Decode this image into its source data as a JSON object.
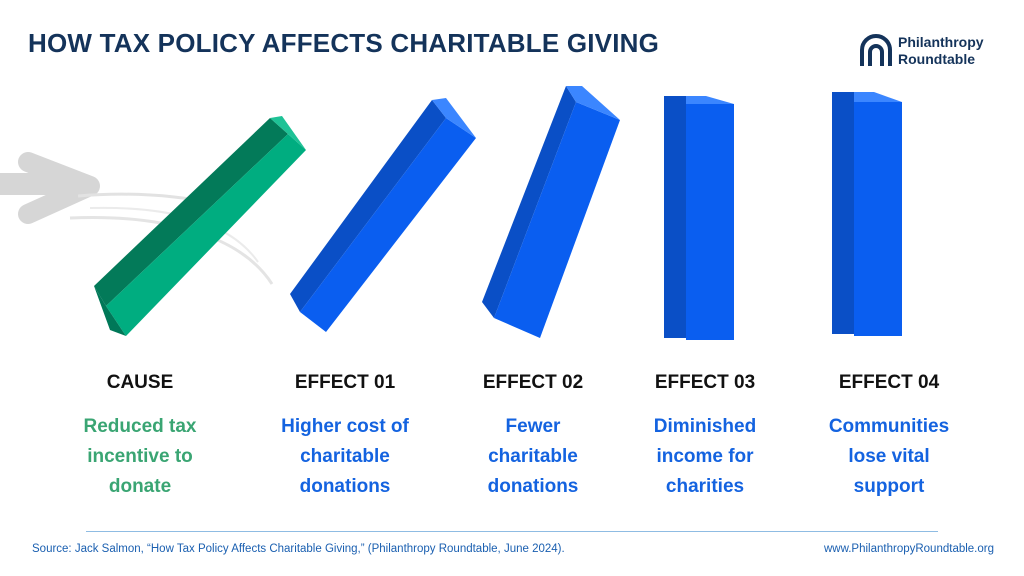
{
  "header": {
    "title": "HOW TAX POLICY AFFECTS CHARITABLE GIVING",
    "logo_line1": "Philanthropy",
    "logo_line2": "Roundtable"
  },
  "colors": {
    "cause_green": "#00ad80",
    "effect_blue": "#0a5ef0",
    "title_navy": "#14335a"
  },
  "stages": [
    {
      "heading": "CAUSE",
      "lines": [
        "Reduced tax",
        "incentive to",
        "donate"
      ]
    },
    {
      "heading": "EFFECT 01",
      "lines": [
        "Higher cost of",
        "charitable",
        "donations"
      ]
    },
    {
      "heading": "EFFECT 02",
      "lines": [
        "Fewer",
        "charitable",
        "donations"
      ]
    },
    {
      "heading": "EFFECT 03",
      "lines": [
        "Diminished",
        "income for",
        "charities"
      ]
    },
    {
      "heading": "EFFECT 04",
      "lines": [
        "Communities",
        "lose vital",
        "support"
      ]
    }
  ],
  "footer": {
    "source": "Source: Jack Salmon, “How Tax Policy Affects Charitable Giving,” (Philanthropy Roundtable, June 2024).",
    "url": "www.PhilanthropyRoundtable.org"
  }
}
